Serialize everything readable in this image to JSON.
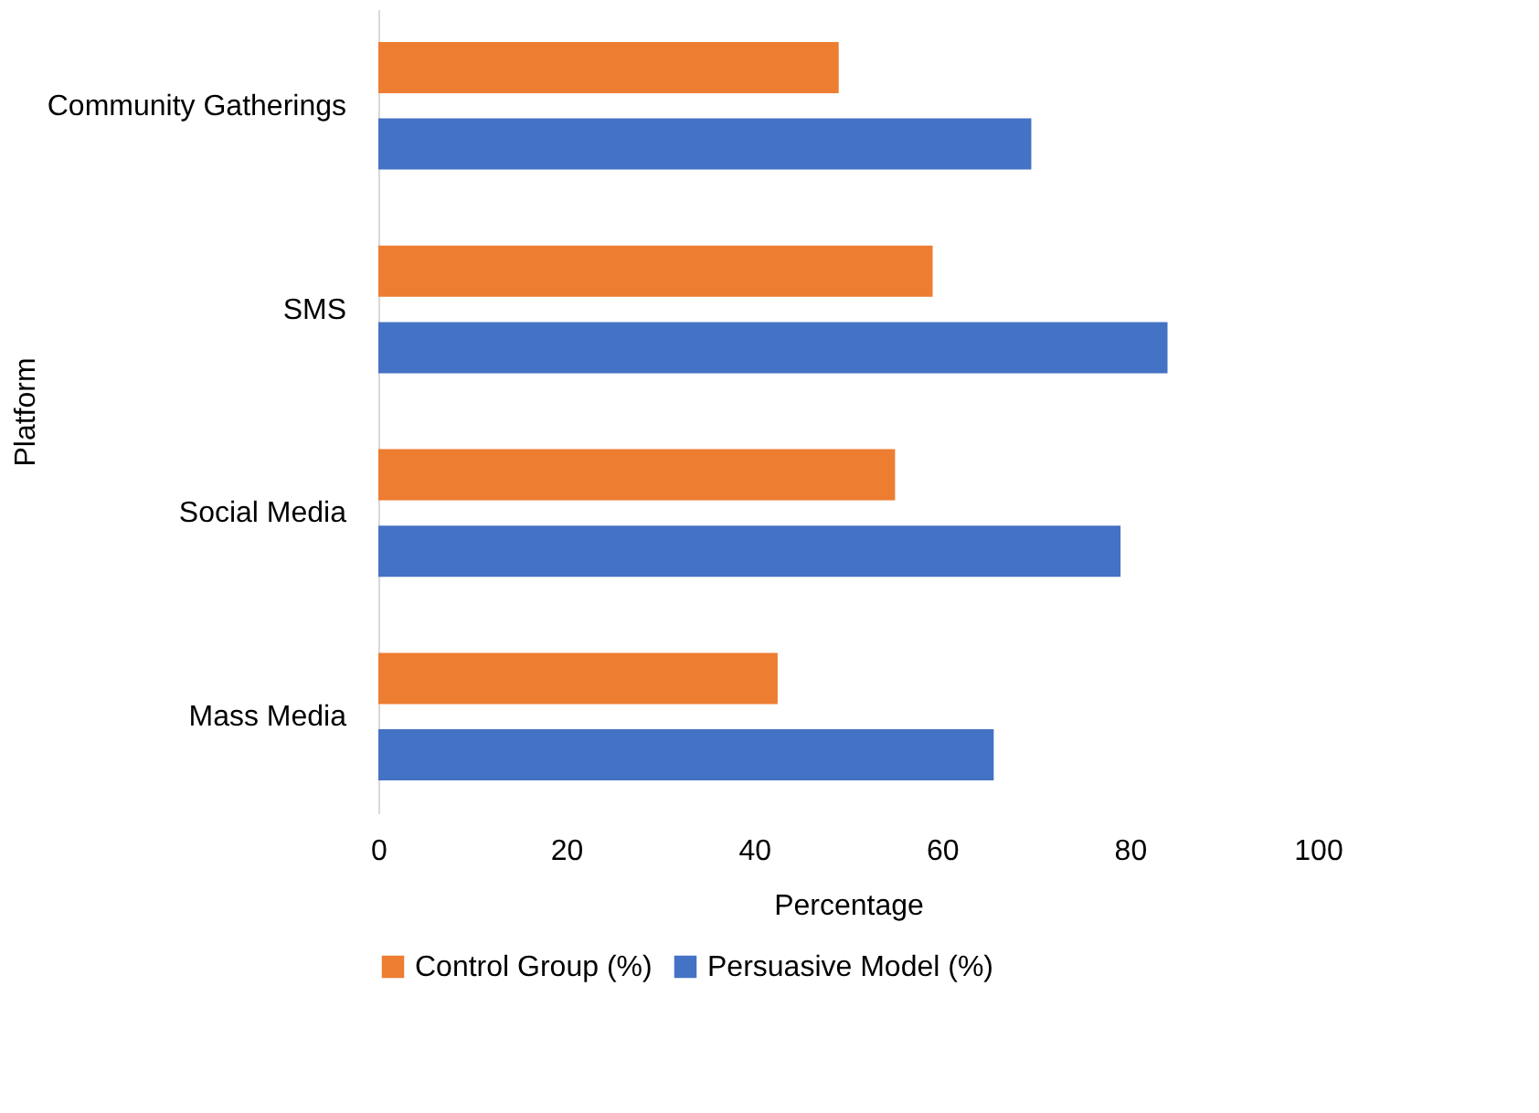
{
  "chart_data": {
    "type": "bar",
    "orientation": "horizontal",
    "xlabel": "Percentage",
    "ylabel": "Platform",
    "categories": [
      "Community Gatherings",
      "SMS",
      "Social Media",
      "Mass Media"
    ],
    "series": [
      {
        "name": "Control Group (%)",
        "color": "#ed7d31",
        "values": [
          49,
          59,
          55,
          42.5
        ]
      },
      {
        "name": "Persuasive Model (%)",
        "color": "#4472c4",
        "values": [
          69.5,
          84,
          79,
          65.5
        ]
      }
    ],
    "xlim": [
      0,
      100
    ],
    "xticks": [
      0,
      20,
      40,
      60,
      80,
      100
    ],
    "grid": false,
    "legend": "bottom"
  }
}
